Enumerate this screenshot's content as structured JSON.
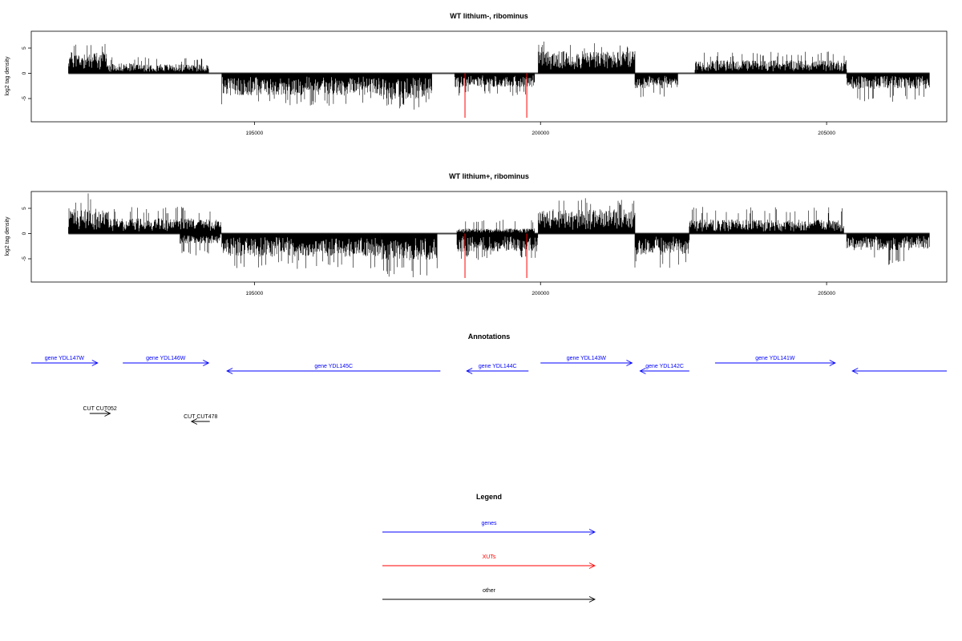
{
  "chart_data": [
    {
      "type": "bar",
      "title": "WT lithium-, ribominus",
      "ylabel": "log2 tag density",
      "xlabel": "",
      "xlim": [
        191100,
        207100
      ],
      "ylim": [
        -9,
        9
      ],
      "x_ticks": [
        195000,
        200000,
        205000
      ],
      "x_tick_labels": [
        "195000",
        "200000",
        "205000"
      ],
      "y_ticks": [
        -5,
        0,
        5
      ],
      "y_tick_labels": [
        "-5",
        "0",
        "5"
      ],
      "baseline": 0,
      "grid": false,
      "color": "#000000",
      "segments": [
        {
          "x0": 191750,
          "x1": 192420,
          "dir": 1,
          "amp": 4.3,
          "max": 6.2
        },
        {
          "x0": 192420,
          "x1": 193400,
          "dir": 1,
          "amp": 2.0,
          "max": 3.2
        },
        {
          "x0": 193400,
          "x1": 194200,
          "dir": 1,
          "amp": 1.8,
          "max": 3.0
        },
        {
          "x0": 194430,
          "x1": 197200,
          "dir": -1,
          "amp": 4.4,
          "max": 6.5
        },
        {
          "x0": 197200,
          "x1": 198100,
          "dir": -1,
          "amp": 5.3,
          "max": 7.5
        },
        {
          "x0": 198500,
          "x1": 199900,
          "dir": -1,
          "amp": 2.8,
          "max": 4.5
        },
        {
          "x0": 199960,
          "x1": 201650,
          "dir": 1,
          "amp": 4.4,
          "max": 6.3
        },
        {
          "x0": 201650,
          "x1": 202400,
          "dir": -1,
          "amp": 3.0,
          "max": 5.0
        },
        {
          "x0": 202700,
          "x1": 205350,
          "dir": 1,
          "amp": 2.6,
          "max": 4.3
        },
        {
          "x0": 205350,
          "x1": 206800,
          "dir": -1,
          "amp": 3.1,
          "max": 5.7
        }
      ],
      "xut_marks": [
        {
          "x": 198680,
          "ymin": -8.8
        },
        {
          "x": 199760,
          "ymin": -8.8
        }
      ]
    },
    {
      "type": "bar",
      "title": "WT lithium+, ribominus",
      "ylabel": "log2 tag density",
      "xlabel": "",
      "xlim": [
        191100,
        207100
      ],
      "ylim": [
        -9,
        9
      ],
      "x_ticks": [
        195000,
        200000,
        205000
      ],
      "x_tick_labels": [
        "195000",
        "200000",
        "205000"
      ],
      "y_ticks": [
        -5,
        0,
        5
      ],
      "y_tick_labels": [
        "-5",
        "0",
        "5"
      ],
      "baseline": 0,
      "grid": false,
      "color": "#000000",
      "segments": [
        {
          "x0": 191750,
          "x1": 192450,
          "dir": 1,
          "amp": 5.0,
          "max": 8.0
        },
        {
          "x0": 192450,
          "x1": 194420,
          "dir": 1,
          "amp": 3.0,
          "max": 5.3
        },
        {
          "x0": 193700,
          "x1": 194400,
          "dir": -1,
          "amp": 2.0,
          "max": 4.4
        },
        {
          "x0": 194430,
          "x1": 197200,
          "dir": -1,
          "amp": 4.6,
          "max": 7.0
        },
        {
          "x0": 197200,
          "x1": 198200,
          "dir": -1,
          "amp": 5.3,
          "max": 8.8
        },
        {
          "x0": 198540,
          "x1": 199960,
          "dir": -1,
          "amp": 3.6,
          "max": 5.5
        },
        {
          "x0": 198540,
          "x1": 199900,
          "dir": 1,
          "amp": 1.0,
          "max": 2.8
        },
        {
          "x0": 199960,
          "x1": 201650,
          "dir": 1,
          "amp": 4.8,
          "max": 7.3
        },
        {
          "x0": 201650,
          "x1": 202600,
          "dir": -1,
          "amp": 4.2,
          "max": 7.2
        },
        {
          "x0": 202600,
          "x1": 205300,
          "dir": 1,
          "amp": 2.8,
          "max": 5.3
        },
        {
          "x0": 205350,
          "x1": 206800,
          "dir": -1,
          "amp": 3.3,
          "max": 6.2
        }
      ],
      "xut_marks": [
        {
          "x": 198680,
          "ymin": -8.8
        },
        {
          "x": 199760,
          "ymin": -8.8
        }
      ]
    }
  ],
  "annotations": {
    "title": "Annotations",
    "features": [
      {
        "label": "gene YDL147W",
        "kind": "genes",
        "x0": 191100,
        "x1": 192260,
        "dir": 1,
        "row": 0
      },
      {
        "label": "gene YDL146W",
        "kind": "genes",
        "x0": 192700,
        "x1": 194200,
        "dir": 1,
        "row": 0
      },
      {
        "label": "gene YDL145C",
        "kind": "genes",
        "x0": 194520,
        "x1": 198250,
        "dir": -1,
        "row": 1
      },
      {
        "label": "gene YDL144C",
        "kind": "genes",
        "x0": 198710,
        "x1": 199790,
        "dir": -1,
        "row": 1
      },
      {
        "label": "gene YDL143W",
        "kind": "genes",
        "x0": 200000,
        "x1": 201600,
        "dir": 1,
        "row": 0
      },
      {
        "label": "gene YDL142C",
        "kind": "genes",
        "x0": 201740,
        "x1": 202600,
        "dir": -1,
        "row": 1
      },
      {
        "label": "gene YDL141W",
        "kind": "genes",
        "x0": 203050,
        "x1": 205150,
        "dir": 1,
        "row": 0
      },
      {
        "label": "",
        "kind": "genes",
        "x0": 205450,
        "x1": 207100,
        "dir": -1,
        "row": 1
      },
      {
        "label": "CUT CUT052",
        "kind": "other",
        "x0": 192120,
        "x1": 192480,
        "dir": 1,
        "row": 2
      },
      {
        "label": "CUT CUT478",
        "kind": "other",
        "x0": 193900,
        "x1": 194220,
        "dir": -1,
        "row": 3
      }
    ]
  },
  "legend": {
    "title": "Legend",
    "items": [
      {
        "label": "genes",
        "color": "#0000ff"
      },
      {
        "label": "XUTs",
        "color": "#ff0000"
      },
      {
        "label": "other",
        "color": "#000000"
      }
    ]
  },
  "colors": {
    "genes": "#0000ff",
    "XUTs": "#ff0000",
    "other": "#000000"
  }
}
